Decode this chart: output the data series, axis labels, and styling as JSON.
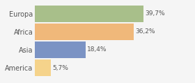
{
  "categories": [
    "America",
    "Asia",
    "Africa",
    "Europa"
  ],
  "values": [
    5.7,
    18.4,
    36.2,
    39.7
  ],
  "labels": [
    "5,7%",
    "18,4%",
    "36,2%",
    "39,7%"
  ],
  "bar_colors": [
    "#f5d38b",
    "#7b93c4",
    "#f0b87a",
    "#a8bf8a"
  ],
  "background_color": "#f5f5f5",
  "xlim": [
    0,
    50
  ],
  "label_fontsize": 6.5,
  "tick_fontsize": 7.0
}
